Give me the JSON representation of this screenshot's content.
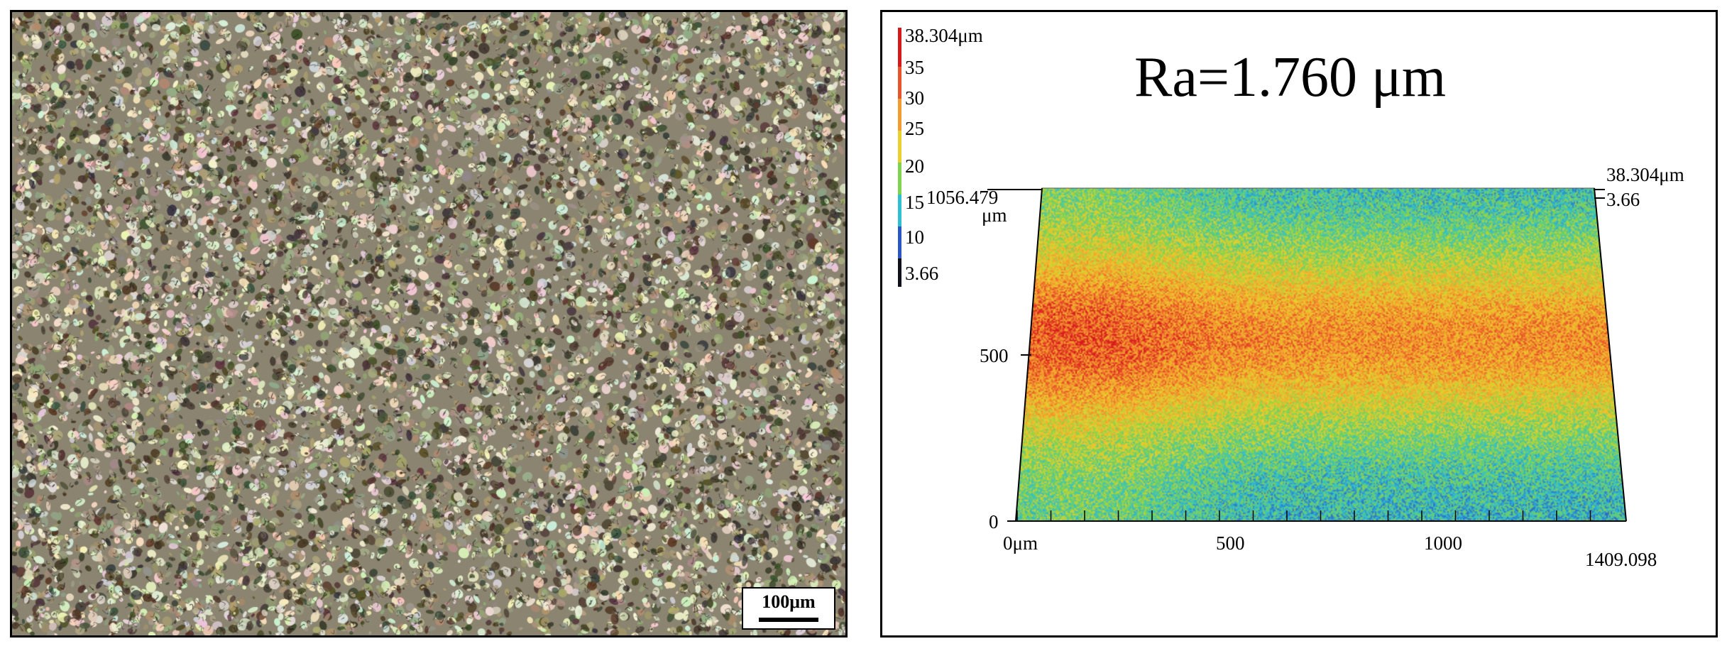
{
  "micrograph": {
    "scale_bar_label": "100μm"
  },
  "profile": {
    "roughness_label": "Ra=1.760 μm",
    "color_scale": {
      "labels": [
        "38.304μm",
        "35",
        "30",
        "25",
        "20",
        "15",
        "10",
        "3.66"
      ],
      "colors": [
        "#d7191c",
        "#e8552a",
        "#f59a2f",
        "#e8d12c",
        "#7fd34e",
        "#2ebfd3",
        "#2a56c8",
        "#101018"
      ]
    },
    "y_axis": {
      "max_label": "1056.479",
      "max_unit": "μm",
      "mid_label": "500",
      "zero_label": "0"
    },
    "x_axis": {
      "start_label": "0μm",
      "mid_label": "500",
      "mid2_label": "1000",
      "end_label": "1409.098"
    },
    "z_axis": {
      "max_label": "38.304μm",
      "min_label": "3.66"
    }
  }
}
